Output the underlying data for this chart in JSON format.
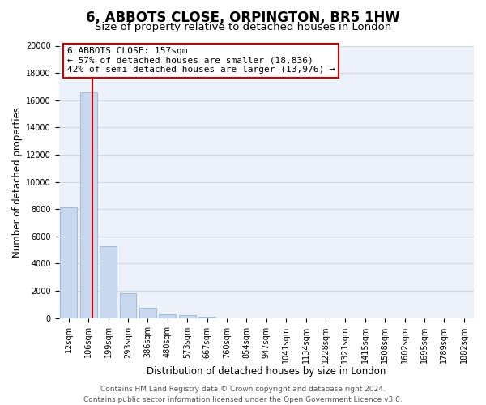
{
  "title": "6, ABBOTS CLOSE, ORPINGTON, BR5 1HW",
  "subtitle": "Size of property relative to detached houses in London",
  "xlabel": "Distribution of detached houses by size in London",
  "ylabel": "Number of detached properties",
  "bar_labels": [
    "12sqm",
    "106sqm",
    "199sqm",
    "293sqm",
    "386sqm",
    "480sqm",
    "573sqm",
    "667sqm",
    "760sqm",
    "854sqm",
    "947sqm",
    "1041sqm",
    "1134sqm",
    "1228sqm",
    "1321sqm",
    "1415sqm",
    "1508sqm",
    "1602sqm",
    "1695sqm",
    "1789sqm",
    "1882sqm"
  ],
  "bar_values": [
    8100,
    16600,
    5300,
    1800,
    750,
    300,
    200,
    100,
    0,
    0,
    0,
    0,
    0,
    0,
    0,
    0,
    0,
    0,
    0,
    0,
    0
  ],
  "bar_color": "#c8d8ee",
  "bar_edge_color": "#9ab4d4",
  "vline_x": 1.2,
  "vline_color": "#cc0000",
  "ylim": [
    0,
    20000
  ],
  "yticks": [
    0,
    2000,
    4000,
    6000,
    8000,
    10000,
    12000,
    14000,
    16000,
    18000,
    20000
  ],
  "annotation_line1": "6 ABBOTS CLOSE: 157sqm",
  "annotation_line2": "← 57% of detached houses are smaller (18,836)",
  "annotation_line3": "42% of semi-detached houses are larger (13,976) →",
  "footer_line1": "Contains HM Land Registry data © Crown copyright and database right 2024.",
  "footer_line2": "Contains public sector information licensed under the Open Government Licence v3.0.",
  "background_color": "#ffffff",
  "plot_bg_color": "#edf1f9",
  "grid_color": "#d0d8e8",
  "title_fontsize": 12,
  "subtitle_fontsize": 9.5,
  "axis_label_fontsize": 8.5,
  "tick_fontsize": 7,
  "footer_fontsize": 6.5
}
